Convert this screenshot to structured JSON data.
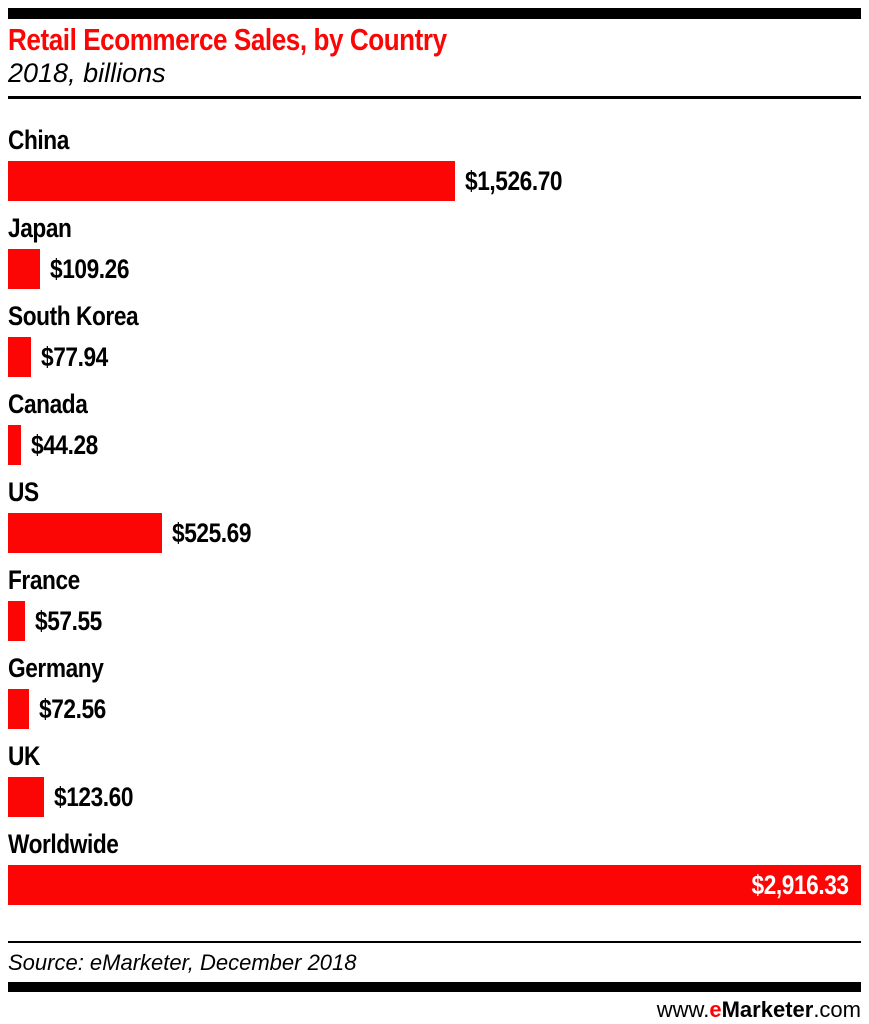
{
  "header": {
    "title": "Retail Ecommerce Sales, by Country",
    "subtitle": "2018, billions"
  },
  "chart_data": {
    "type": "bar",
    "orientation": "horizontal",
    "title": "Retail Ecommerce Sales, by Country",
    "subtitle": "2018, billions",
    "unit": "USD billions",
    "xlim": [
      0,
      2916.33
    ],
    "grid": false,
    "legend": false,
    "bar_color": "#fb0505",
    "rows": [
      {
        "category": "China",
        "value": 1526.7,
        "label": "$1,526.70",
        "value_inside": false
      },
      {
        "category": "Japan",
        "value": 109.26,
        "label": "$109.26",
        "value_inside": false
      },
      {
        "category": "South Korea",
        "value": 77.94,
        "label": "$77.94",
        "value_inside": false
      },
      {
        "category": "Canada",
        "value": 44.28,
        "label": "$44.28",
        "value_inside": false
      },
      {
        "category": "US",
        "value": 525.69,
        "label": "$525.69",
        "value_inside": false
      },
      {
        "category": "France",
        "value": 57.55,
        "label": "$57.55",
        "value_inside": false
      },
      {
        "category": "Germany",
        "value": 72.56,
        "label": "$72.56",
        "value_inside": false
      },
      {
        "category": "UK",
        "value": 123.6,
        "label": "$123.60",
        "value_inside": false
      },
      {
        "category": "Worldwide",
        "value": 2916.33,
        "label": "$2,916.33",
        "value_inside": true
      }
    ]
  },
  "footer": {
    "source": "Source: eMarketer, December 2018",
    "website": {
      "prefix": "www.",
      "e": "e",
      "brand": "Marketer",
      "suffix": ".com"
    }
  },
  "colors": {
    "accent_red": "#fb0505",
    "text_black": "#000000",
    "worldwide_value_text": "#ffffff"
  }
}
